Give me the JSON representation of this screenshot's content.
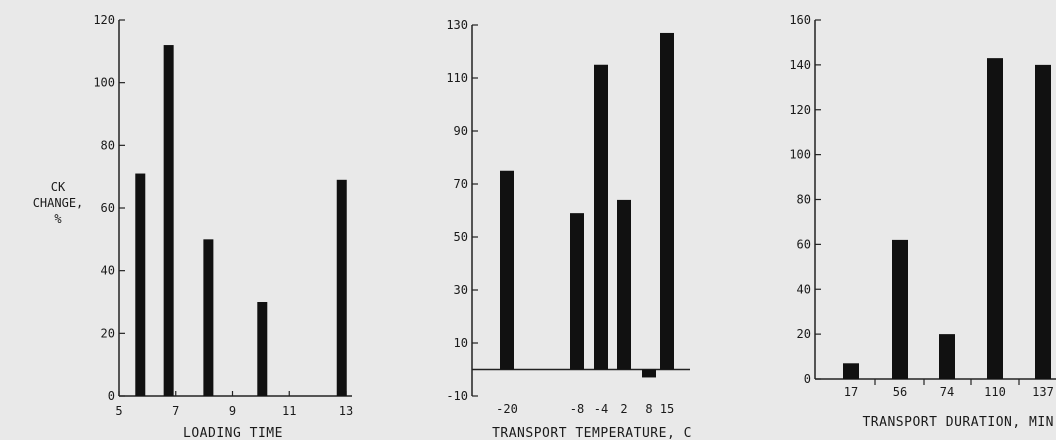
{
  "chart_data": [
    {
      "type": "bar",
      "ylabel": "CK CHANGE, %",
      "ylabel_lines": [
        "CK",
        "CHANGE,",
        "%"
      ],
      "xlabel": "LOADING TIME",
      "ylim": [
        0,
        120
      ],
      "yticks": [
        0,
        20,
        40,
        60,
        80,
        100,
        120
      ],
      "xlim": [
        5,
        13
      ],
      "xticks": [
        5,
        7,
        9,
        11,
        13
      ],
      "points": [
        {
          "x": 5.75,
          "y": 71
        },
        {
          "x": 6.75,
          "y": 112
        },
        {
          "x": 8.15,
          "y": 50
        },
        {
          "x": 10.05,
          "y": 30
        },
        {
          "x": 12.85,
          "y": 69
        }
      ]
    },
    {
      "type": "bar",
      "xlabel": "TRANSPORT TEMPERATURE, C",
      "ylim": [
        -10,
        130
      ],
      "yticks": [
        -10,
        10,
        30,
        50,
        70,
        90,
        110,
        130
      ],
      "categories": [
        "-20",
        "-8",
        "-4",
        "2",
        "8",
        "15"
      ],
      "values": [
        75,
        59,
        115,
        64,
        -3,
        127
      ]
    },
    {
      "type": "bar",
      "xlabel": "TRANSPORT DURATION, MIN",
      "ylim": [
        0,
        160
      ],
      "yticks": [
        0,
        20,
        40,
        60,
        80,
        100,
        120,
        140,
        160
      ],
      "categories": [
        "17",
        "56",
        "74",
        "110",
        "137"
      ],
      "values": [
        7,
        62,
        20,
        143,
        140
      ]
    }
  ],
  "colors": {
    "bar": "#111111",
    "axis": "#222222",
    "background": "#e9e9e9"
  }
}
